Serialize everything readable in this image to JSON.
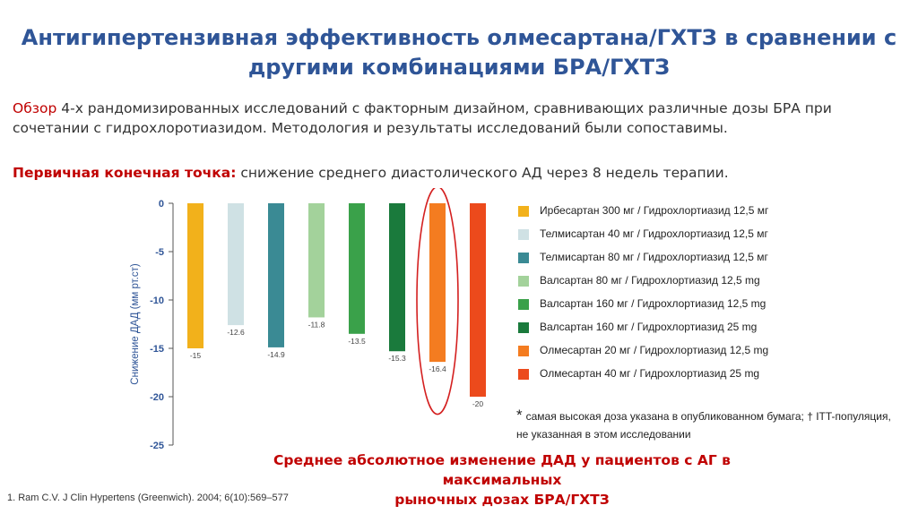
{
  "slide": {
    "title_line1": "Антигипертензивная эффективность олмесартана/ГХТЗ в сравнении с",
    "title_line2": "другими комбинациями БРА/ГХТЗ",
    "intro_highlight": "Обзор",
    "intro_text": " 4-х рандомизированных исследований с факторным дизайном, сравнивающих различные дозы БРА при сочетании с гидрохлоротиазидом. Методология и результаты исследований были сопоставимы.",
    "endpoint_label": "Первичная конечная точка:",
    "endpoint_text": " снижение среднего диастолического АД через 8 недель терапии.",
    "footnote_star": "*",
    "footnote_text": "самая высокая доза указана в опубликованном  бумага; † ITT-популяция,  не указанная в этом исследовании",
    "caption_line1": "Среднее абсолютное изменение ДАД у пациентов с АГ  в максимальных",
    "caption_line2": "рыночных дозах БРА/ГХТЗ",
    "reference": "1. Ram C.V. J Clin Hypertens (Greenwich). 2004; 6(10):569–577"
  },
  "chart_data": {
    "type": "bar",
    "ylabel": "Снижение  ДАД (мм рт.ст)",
    "xlabel": "",
    "ylim": [
      -25,
      0
    ],
    "yticks": [
      0,
      -5,
      -10,
      -15,
      -20,
      -25
    ],
    "grid": false,
    "legend_position": "right",
    "highlight": "Олмесартан 20 мг / Гидрохлортиазид 12,5 mg",
    "series": [
      {
        "name": "Ирбесартан 300 мг / Гидрохлортиазид 12,5 мг",
        "value": -15,
        "label": "-15",
        "color": "#f2b11b"
      },
      {
        "name": "Телмисартан 40 мг / Гидрохлортиазид 12,5 мг",
        "value": -12.6,
        "label": "-12.6",
        "color": "#cfe1e4"
      },
      {
        "name": "Телмисартан 80 мг / Гидрохлортиазид 12,5 мг",
        "value": -14.9,
        "label": "-14.9",
        "color": "#3a8a94"
      },
      {
        "name": "Валсартан 80 мг / Гидрохлортиазид 12,5 mg",
        "value": -11.8,
        "label": "-11.8",
        "color": "#a3d29b"
      },
      {
        "name": "Валсартан 160 мг / Гидрохлортиазид 12,5 mg",
        "value": -13.5,
        "label": "-13.5",
        "color": "#3aa14a"
      },
      {
        "name": "Валсартан 160 мг / Гидрохлортиазид 25 mg",
        "value": -15.3,
        "label": "-15.3",
        "color": "#1a7a3c"
      },
      {
        "name": "Олмесартан 20 мг / Гидрохлортиазид 12,5 mg",
        "value": -16.4,
        "label": "-16.4",
        "color": "#f47c20"
      },
      {
        "name": "Олмесартан 40 мг / Гидрохлортиазид 25 mg",
        "value": -20,
        "label": "-20",
        "color": "#ec4a1c"
      }
    ]
  }
}
